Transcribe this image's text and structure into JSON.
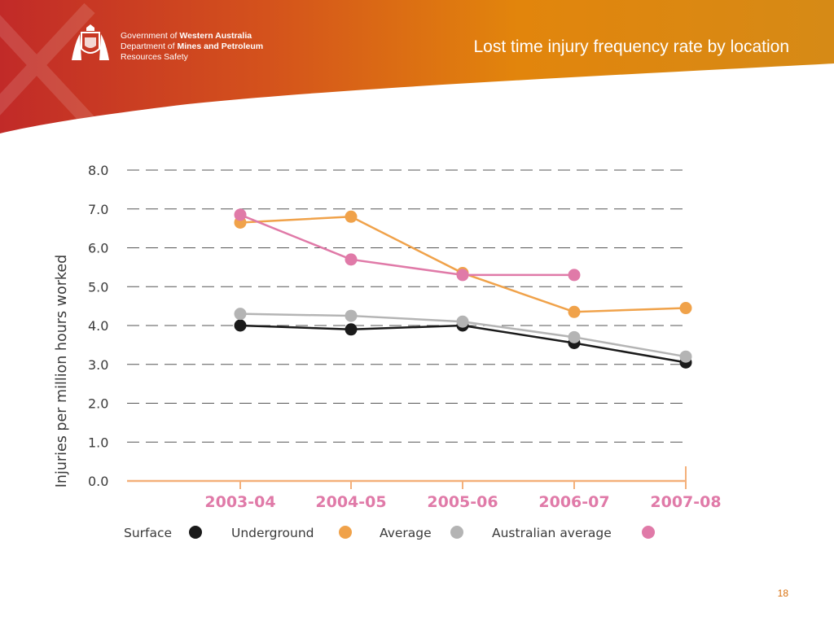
{
  "header": {
    "gov_prefix": "Government of",
    "gov_bold": "Western Australia",
    "dept_prefix": "Department of",
    "dept_bold": "Mines and Petroleum",
    "division": "Resources Safety",
    "title": "Lost time injury frequency rate by location"
  },
  "page_number": "18",
  "colors": {
    "banner_red": "#c8322a",
    "banner_orange": "#e0820c",
    "surface": "#1a1a1a",
    "underground": "#f0a24a",
    "average": "#b4b4b4",
    "australian_average": "#e07aa8",
    "axis": "#f4b07a",
    "category_label": "#e07aa8",
    "grid": "#555555"
  },
  "chart_data": {
    "type": "line",
    "title": "",
    "xlabel": "",
    "ylabel": "Injuries per million hours worked",
    "categories": [
      "2003-04",
      "2004-05",
      "2005-06",
      "2006-07",
      "2007-08"
    ],
    "ylim": [
      0,
      8
    ],
    "yticks": [
      "0.0",
      "1.0",
      "2.0",
      "3.0",
      "4.0",
      "5.0",
      "6.0",
      "7.0",
      "8.0"
    ],
    "grid": "horizontal dashed",
    "legend_position": "bottom",
    "series": [
      {
        "name": "Surface",
        "color": "#1a1a1a",
        "values": [
          4.0,
          3.9,
          4.0,
          3.55,
          3.05
        ]
      },
      {
        "name": "Underground",
        "color": "#f0a24a",
        "values": [
          6.65,
          6.8,
          5.35,
          4.35,
          4.45
        ]
      },
      {
        "name": "Average",
        "color": "#b4b4b4",
        "values": [
          4.3,
          4.25,
          4.1,
          3.7,
          3.2
        ]
      },
      {
        "name": "Australian average",
        "color": "#e07aa8",
        "values": [
          6.85,
          5.7,
          5.3,
          5.3,
          null
        ]
      }
    ]
  }
}
